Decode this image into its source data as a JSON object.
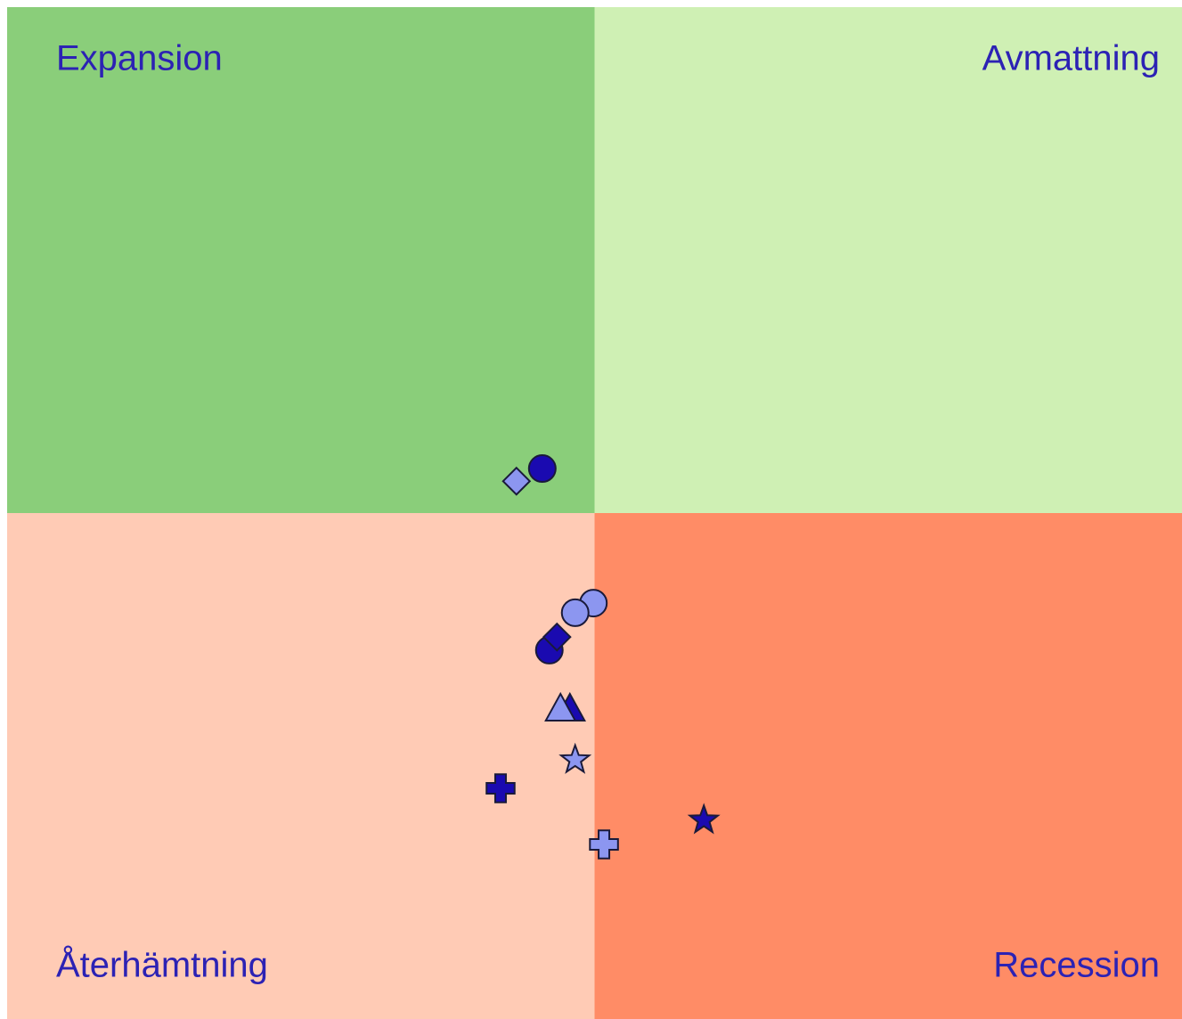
{
  "chart_data": {
    "type": "scatter",
    "xlim": [
      -10,
      10
    ],
    "ylim": [
      -10,
      10
    ],
    "quadrants": [
      {
        "label": "Expansion",
        "color": "#8ace7a",
        "corner": "top-left"
      },
      {
        "label": "Avmattning",
        "color": "#cff0b4",
        "corner": "top-right"
      },
      {
        "label": "Återhämtning",
        "color": "#ffcbb5",
        "corner": "bottom-left"
      },
      {
        "label": "Recession",
        "color": "#ff8c66",
        "corner": "bottom-right"
      }
    ],
    "series": [
      {
        "color": "#1a0ab0",
        "marker": "circle",
        "x": [
          -0.89,
          -0.77
        ],
        "y": [
          0.88,
          -2.71
        ]
      },
      {
        "color": "#1a0ab0",
        "marker": "diamond",
        "x": [
          -0.64
        ],
        "y": [
          -2.45
        ]
      },
      {
        "color": "#1a0ab0",
        "marker": "triangle",
        "x": [
          -0.42
        ],
        "y": [
          -3.89
        ]
      },
      {
        "color": "#1a0ab0",
        "marker": "star",
        "x": [
          1.86
        ],
        "y": [
          -6.07
        ]
      },
      {
        "color": "#1a0ab0",
        "marker": "plus",
        "x": [
          -1.6
        ],
        "y": [
          -5.44
        ]
      },
      {
        "color": "#8c96f0",
        "marker": "diamond",
        "x": [
          -1.33
        ],
        "y": [
          0.63
        ]
      },
      {
        "color": "#8c96f0",
        "marker": "circle",
        "x": [
          -0.02,
          -0.33
        ],
        "y": [
          -1.78,
          -1.97
        ]
      },
      {
        "color": "#8c96f0",
        "marker": "triangle",
        "x": [
          -0.58
        ],
        "y": [
          -3.89
        ]
      },
      {
        "color": "#8c96f0",
        "marker": "star",
        "x": [
          -0.33
        ],
        "y": [
          -4.88
        ]
      },
      {
        "color": "#8c96f0",
        "marker": "plus",
        "x": [
          0.16
        ],
        "y": [
          -6.55
        ]
      }
    ]
  }
}
